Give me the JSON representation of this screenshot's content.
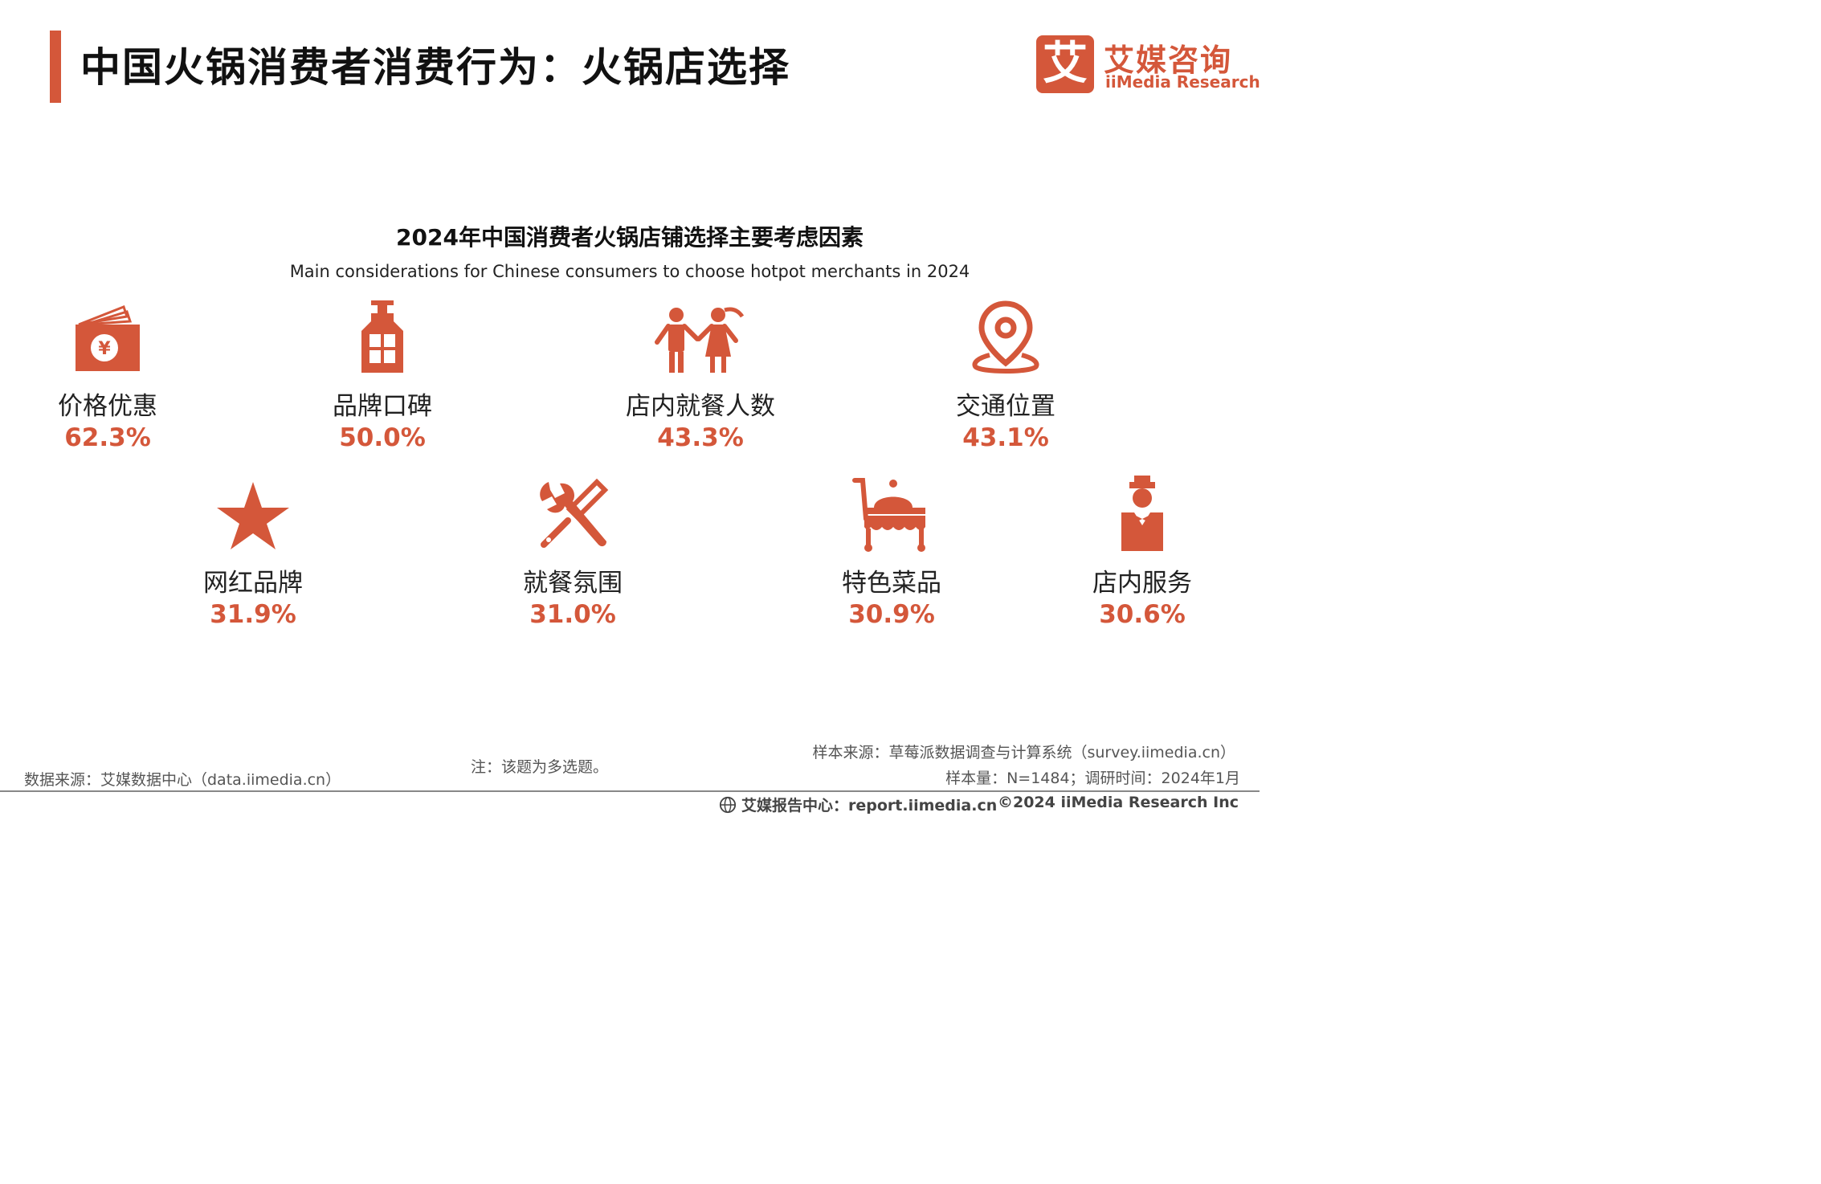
{
  "header": {
    "title": "中国火锅消费者消费行为：火锅店选择",
    "logo_glyph": "艾",
    "logo_cn": "艾媒咨询",
    "logo_en": "iiMedia Research"
  },
  "colors": {
    "accent": "#D4573A"
  },
  "chart_data": {
    "type": "pictograph",
    "title": "2024年中国消费者火锅店铺选择主要考虑因素",
    "subtitle": "Main considerations for Chinese consumers to choose hotpot merchants in 2024",
    "unit": "%",
    "items": [
      {
        "label": "价格优惠",
        "value": 62.3,
        "display": "62.3%",
        "icon": "wallet-yen-icon"
      },
      {
        "label": "品牌口碑",
        "value": 50.0,
        "display": "50.0%",
        "icon": "bottle-icon"
      },
      {
        "label": "店内就餐人数",
        "value": 43.3,
        "display": "43.3%",
        "icon": "people-icon"
      },
      {
        "label": "交通位置",
        "value": 43.1,
        "display": "43.1%",
        "icon": "location-pin-icon"
      },
      {
        "label": "网红品牌",
        "value": 31.9,
        "display": "31.9%",
        "icon": "star-icon"
      },
      {
        "label": "就餐氛围",
        "value": 31.0,
        "display": "31.0%",
        "icon": "tools-icon"
      },
      {
        "label": "特色菜品",
        "value": 30.9,
        "display": "30.9%",
        "icon": "food-cart-icon"
      },
      {
        "label": "店内服务",
        "value": 30.6,
        "display": "30.6%",
        "icon": "waiter-icon"
      }
    ]
  },
  "footer": {
    "data_source": "数据来源：艾媒数据中心（data.iimedia.cn）",
    "note": "注：该题为多选题。",
    "sample_source": "样本来源：草莓派数据调查与计算系统（survey.iimedia.cn）",
    "sample_size": "样本量：N=1484；调研时间：2024年1月",
    "report_center": "艾媒报告中心：report.iimedia.cn",
    "copyright": "©2024  iiMedia Research  Inc"
  }
}
